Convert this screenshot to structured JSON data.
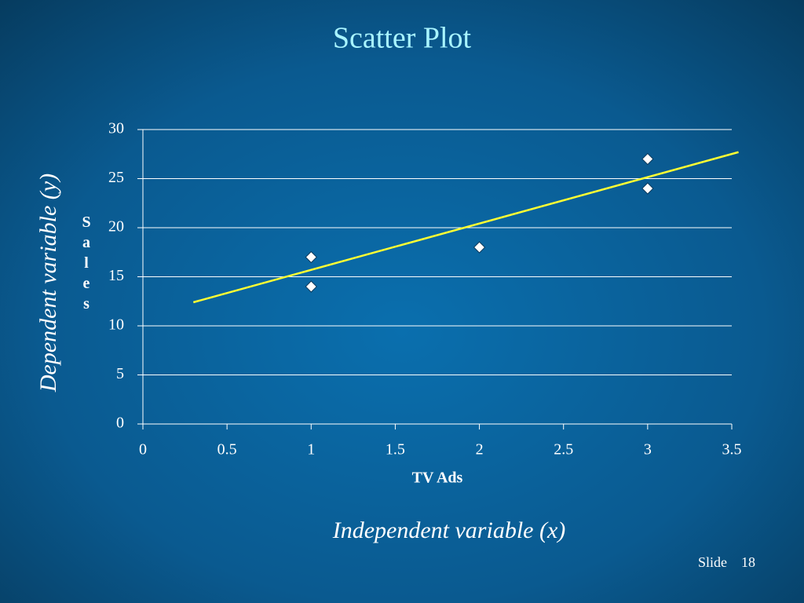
{
  "chart_data": {
    "type": "scatter",
    "title": "Scatter Plot",
    "x_label": "TV Ads",
    "y_label": "Sales",
    "series": [
      {
        "name": "Sales",
        "color": "#ffffff",
        "x": [
          1,
          1,
          2,
          3,
          3
        ],
        "values": [
          17,
          14,
          18,
          27,
          24
        ]
      }
    ],
    "trendline": {
      "color": "#ffff33",
      "x": [
        0.3,
        3.54
      ],
      "y": [
        12.4,
        27.7
      ]
    },
    "xlim": [
      0,
      3.5
    ],
    "xticks": [
      0,
      0.5,
      1,
      1.5,
      2,
      2.5,
      3,
      3.5
    ],
    "ylim": [
      0,
      30
    ],
    "yticks": [
      0,
      5,
      10,
      15,
      20,
      25,
      30
    ],
    "grid": true
  },
  "slide": {
    "dependent_label": "Dependent variable (y)",
    "independent_label": "Independent variable (x)",
    "slide_label": "Slide",
    "slide_number": "18"
  }
}
